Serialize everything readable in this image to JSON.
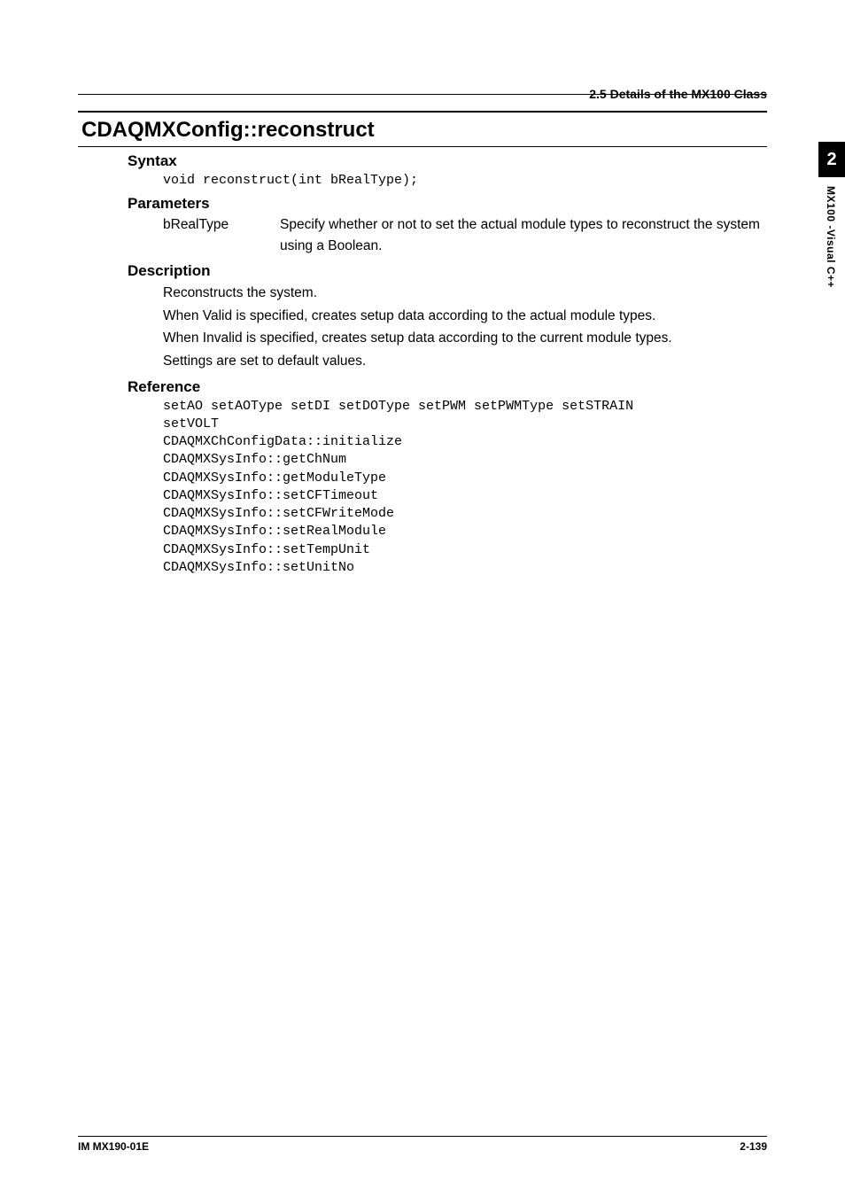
{
  "header": {
    "section_label": "2.5  Details of the MX100 Class"
  },
  "title": "CDAQMXConfig::reconstruct",
  "syntax": {
    "heading": "Syntax",
    "code": "void reconstruct(int bRealType);"
  },
  "parameters": {
    "heading": "Parameters",
    "items": [
      {
        "name": "bRealType",
        "desc": "Specify whether or not to set the actual module types to reconstruct the system using a Boolean."
      }
    ]
  },
  "description": {
    "heading": "Description",
    "lines": [
      "Reconstructs the system.",
      "When Valid is specified, creates setup data according to the actual module types.",
      "When Invalid is specified, creates setup data according to the current module types.",
      "Settings are set to default values."
    ]
  },
  "reference": {
    "heading": "Reference",
    "code": "setAO setAOType setDI setDOType setPWM setPWMType setSTRAIN\nsetVOLT\nCDAQMXChConfigData::initialize\nCDAQMXSysInfo::getChNum\nCDAQMXSysInfo::getModuleType\nCDAQMXSysInfo::setCFTimeout\nCDAQMXSysInfo::setCFWriteMode\nCDAQMXSysInfo::setRealModule\nCDAQMXSysInfo::setTempUnit\nCDAQMXSysInfo::setUnitNo"
  },
  "sidetab": {
    "chapter": "2",
    "label": "MX100 -Visual  C++"
  },
  "footer": {
    "left": "IM MX190-01E",
    "right": "2-139"
  }
}
